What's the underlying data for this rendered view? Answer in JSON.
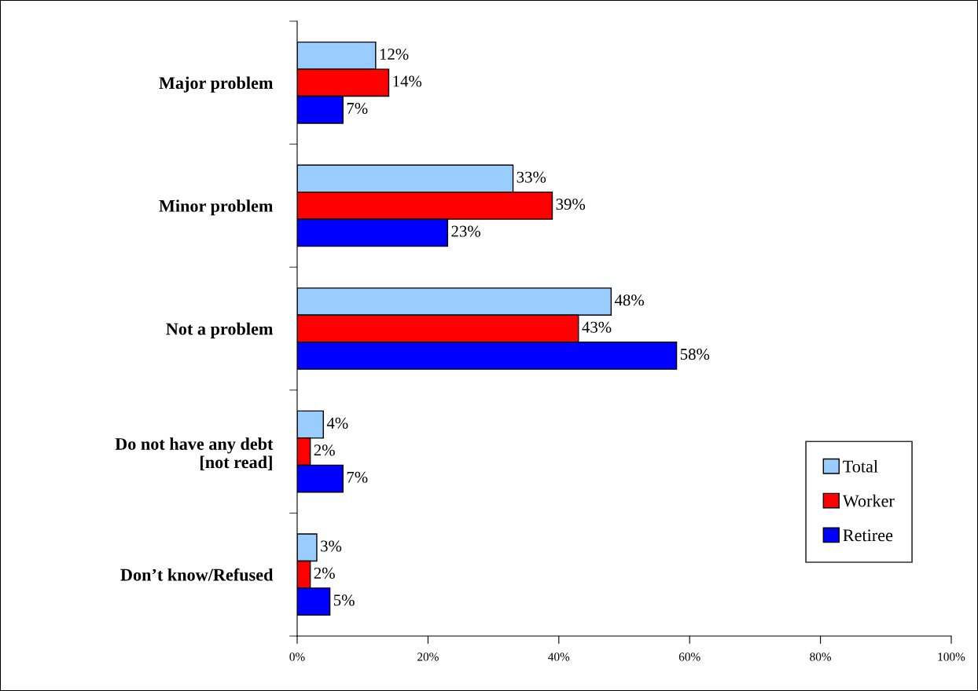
{
  "chart_data": {
    "type": "bar",
    "orientation": "horizontal",
    "categories": [
      "Major problem",
      "Minor problem",
      "Not a problem",
      "Do not have any debt\n[not read]",
      "Don’t know/Refused"
    ],
    "series": [
      {
        "name": "Total",
        "color": "#99ccff",
        "values": [
          12,
          33,
          48,
          4,
          3
        ],
        "value_labels": [
          "12%",
          "33%",
          "48%",
          "4%",
          "3%"
        ]
      },
      {
        "name": "Worker",
        "color": "#ff0000",
        "values": [
          14,
          39,
          43,
          2,
          2
        ],
        "value_labels": [
          "14%",
          "39%",
          "43%",
          "2%",
          "2%"
        ]
      },
      {
        "name": "Retiree",
        "color": "#0000ff",
        "values": [
          7,
          23,
          58,
          7,
          5
        ],
        "value_labels": [
          "7%",
          "23%",
          "58%",
          "7%",
          "5%"
        ]
      }
    ],
    "xlim": [
      0,
      100
    ],
    "xticks": [
      {
        "value": 0,
        "label": "0%"
      },
      {
        "value": 20,
        "label": "20%"
      },
      {
        "value": 40,
        "label": "40%"
      },
      {
        "value": 60,
        "label": "60%"
      },
      {
        "value": 80,
        "label": "80%"
      },
      {
        "value": 100,
        "label": "100%"
      }
    ],
    "legend": "right",
    "grid": false
  }
}
